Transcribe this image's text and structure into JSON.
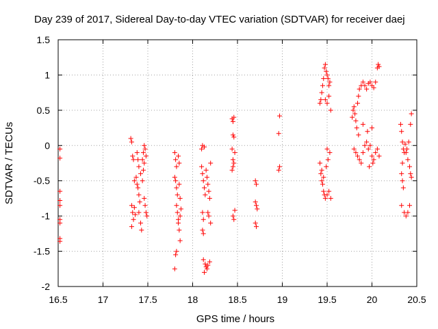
{
  "chart_data": {
    "type": "scatter",
    "title": "Day 239 of 2017, Sidereal Day-to-day VTEC variation (SDTVAR) for receiver daej",
    "xlabel": "GPS time / hours",
    "ylabel": "SDTVAR / TECUs",
    "xlim": [
      16.5,
      20.5
    ],
    "ylim": [
      -2,
      1.5
    ],
    "xticks": [
      16.5,
      17,
      17.5,
      18,
      18.5,
      19,
      19.5,
      20,
      20.5
    ],
    "xtick_labels": [
      "16.5",
      "17",
      "17.5",
      "18",
      "18.5",
      "19",
      "19.5",
      "20",
      "20.5"
    ],
    "yticks": [
      -2,
      -1.5,
      -1,
      -0.5,
      0,
      0.5,
      1,
      1.5
    ],
    "ytick_labels": [
      "-2",
      "-1.5",
      "-1",
      "-0.5",
      "0",
      "0.5",
      "1",
      "1.5"
    ],
    "grid": true,
    "marker": "+",
    "marker_color": "#ff0000",
    "series": [
      {
        "name": "SDTVAR",
        "points": [
          [
            16.52,
            -0.05
          ],
          [
            16.52,
            -0.18
          ],
          [
            16.52,
            -0.65
          ],
          [
            16.52,
            -0.78
          ],
          [
            16.52,
            -0.85
          ],
          [
            16.52,
            -1.05
          ],
          [
            16.52,
            -1.1
          ],
          [
            16.52,
            -1.32
          ],
          [
            16.52,
            -1.36
          ],
          [
            17.31,
            0.1
          ],
          [
            17.32,
            0.05
          ],
          [
            17.33,
            -0.15
          ],
          [
            17.34,
            -0.2
          ],
          [
            17.32,
            -0.85
          ],
          [
            17.33,
            -0.95
          ],
          [
            17.34,
            -1.05
          ],
          [
            17.32,
            -1.15
          ],
          [
            17.35,
            -0.5
          ],
          [
            17.37,
            -0.45
          ],
          [
            17.38,
            -0.55
          ],
          [
            17.39,
            -0.6
          ],
          [
            17.4,
            -0.7
          ],
          [
            17.41,
            -0.8
          ],
          [
            17.4,
            -0.95
          ],
          [
            17.42,
            -1.1
          ],
          [
            17.43,
            -1.2
          ],
          [
            17.38,
            -0.1
          ],
          [
            17.39,
            -0.2
          ],
          [
            17.4,
            -0.3
          ],
          [
            17.42,
            -0.4
          ],
          [
            17.44,
            -0.5
          ],
          [
            17.45,
            -0.35
          ],
          [
            17.44,
            -0.2
          ],
          [
            17.45,
            -0.1
          ],
          [
            17.46,
            0.0
          ],
          [
            17.47,
            -0.05
          ],
          [
            17.46,
            -0.75
          ],
          [
            17.47,
            -0.85
          ],
          [
            17.48,
            -0.95
          ],
          [
            17.49,
            -1.0
          ],
          [
            17.46,
            -0.25
          ],
          [
            17.48,
            -0.15
          ],
          [
            17.35,
            -0.88
          ],
          [
            17.36,
            -0.98
          ],
          [
            17.8,
            -0.1
          ],
          [
            17.81,
            -0.2
          ],
          [
            17.82,
            -0.3
          ],
          [
            17.8,
            -0.45
          ],
          [
            17.81,
            -0.5
          ],
          [
            17.82,
            -0.6
          ],
          [
            17.83,
            -0.7
          ],
          [
            17.82,
            -0.85
          ],
          [
            17.83,
            -0.95
          ],
          [
            17.84,
            -1.1
          ],
          [
            17.85,
            -1.2
          ],
          [
            17.86,
            -1.35
          ],
          [
            17.81,
            -1.55
          ],
          [
            17.8,
            -1.75
          ],
          [
            17.82,
            -1.5
          ],
          [
            17.84,
            -0.15
          ],
          [
            17.85,
            -0.25
          ],
          [
            17.85,
            -0.55
          ],
          [
            17.86,
            -0.75
          ],
          [
            17.87,
            -0.9
          ],
          [
            17.84,
            -1.05
          ],
          [
            17.86,
            -1.0
          ],
          [
            18.1,
            -0.05
          ],
          [
            18.1,
            -0.3
          ],
          [
            18.11,
            -0.4
          ],
          [
            18.12,
            -0.5
          ],
          [
            18.11,
            -0.95
          ],
          [
            18.12,
            -1.05
          ],
          [
            18.11,
            -1.2
          ],
          [
            18.12,
            -1.25
          ],
          [
            18.13,
            -0.6
          ],
          [
            18.14,
            -0.7
          ],
          [
            18.15,
            -0.35
          ],
          [
            18.16,
            -0.45
          ],
          [
            18.17,
            -0.55
          ],
          [
            18.18,
            -0.65
          ],
          [
            18.19,
            -0.75
          ],
          [
            18.2,
            -0.25
          ],
          [
            18.12,
            -1.62
          ],
          [
            18.14,
            -1.68
          ],
          [
            18.15,
            -1.72
          ],
          [
            18.17,
            -1.7
          ],
          [
            18.19,
            -1.65
          ],
          [
            18.13,
            -1.8
          ],
          [
            18.16,
            -1.75
          ],
          [
            18.18,
            -1.0
          ],
          [
            18.2,
            -1.1
          ],
          [
            18.17,
            -0.95
          ],
          [
            18.11,
            0.0
          ],
          [
            18.13,
            -0.02
          ],
          [
            18.44,
            0.38
          ],
          [
            18.45,
            0.34
          ],
          [
            18.46,
            0.4
          ],
          [
            18.45,
            0.15
          ],
          [
            18.46,
            0.12
          ],
          [
            18.44,
            -0.05
          ],
          [
            18.45,
            -0.2
          ],
          [
            18.46,
            -0.25
          ],
          [
            18.45,
            -0.3
          ],
          [
            18.44,
            -0.35
          ],
          [
            18.47,
            -0.1
          ],
          [
            18.45,
            -1.0
          ],
          [
            18.46,
            -1.05
          ],
          [
            18.47,
            -0.92
          ],
          [
            18.7,
            -0.5
          ],
          [
            18.71,
            -0.55
          ],
          [
            18.7,
            -0.8
          ],
          [
            18.71,
            -0.85
          ],
          [
            18.72,
            -0.9
          ],
          [
            18.7,
            -1.1
          ],
          [
            18.71,
            -1.15
          ],
          [
            18.97,
            0.42
          ],
          [
            18.96,
            0.17
          ],
          [
            18.97,
            -0.3
          ],
          [
            18.96,
            -0.35
          ],
          [
            19.42,
            0.6
          ],
          [
            19.43,
            0.65
          ],
          [
            19.44,
            0.75
          ],
          [
            19.45,
            0.85
          ],
          [
            19.46,
            0.95
          ],
          [
            19.47,
            1.1
          ],
          [
            19.48,
            1.15
          ],
          [
            19.49,
            1.05
          ],
          [
            19.5,
            1.0
          ],
          [
            19.51,
            0.95
          ],
          [
            19.52,
            0.85
          ],
          [
            19.53,
            0.9
          ],
          [
            19.48,
            0.65
          ],
          [
            19.5,
            0.6
          ],
          [
            19.52,
            0.7
          ],
          [
            19.54,
            0.5
          ],
          [
            19.42,
            -0.25
          ],
          [
            19.43,
            -0.4
          ],
          [
            19.44,
            -0.5
          ],
          [
            19.45,
            -0.55
          ],
          [
            19.46,
            -0.65
          ],
          [
            19.47,
            -0.7
          ],
          [
            19.48,
            -0.75
          ],
          [
            19.5,
            -0.7
          ],
          [
            19.52,
            -0.65
          ],
          [
            19.54,
            -0.75
          ],
          [
            19.49,
            -0.3
          ],
          [
            19.51,
            -0.2
          ],
          [
            19.53,
            -0.1
          ],
          [
            19.5,
            -0.05
          ],
          [
            19.44,
            -0.35
          ],
          [
            19.46,
            -0.45
          ],
          [
            19.78,
            0.4
          ],
          [
            19.79,
            0.5
          ],
          [
            19.8,
            0.55
          ],
          [
            19.81,
            0.45
          ],
          [
            19.82,
            0.35
          ],
          [
            19.83,
            0.25
          ],
          [
            19.84,
            0.6
          ],
          [
            19.85,
            0.7
          ],
          [
            19.86,
            0.8
          ],
          [
            19.88,
            0.85
          ],
          [
            19.9,
            0.9
          ],
          [
            19.92,
            0.85
          ],
          [
            19.94,
            0.8
          ],
          [
            19.96,
            0.88
          ],
          [
            19.98,
            0.9
          ],
          [
            20.0,
            0.85
          ],
          [
            20.02,
            0.82
          ],
          [
            20.04,
            0.9
          ],
          [
            20.06,
            1.1
          ],
          [
            20.07,
            1.15
          ],
          [
            20.08,
            1.12
          ],
          [
            19.8,
            -0.05
          ],
          [
            19.82,
            -0.1
          ],
          [
            19.84,
            -0.15
          ],
          [
            19.86,
            -0.2
          ],
          [
            19.88,
            -0.25
          ],
          [
            19.9,
            -0.1
          ],
          [
            19.92,
            0.0
          ],
          [
            19.94,
            0.05
          ],
          [
            19.96,
            -0.05
          ],
          [
            19.98,
            0.0
          ],
          [
            20.0,
            -0.15
          ],
          [
            20.02,
            -0.2
          ],
          [
            20.04,
            -0.1
          ],
          [
            20.06,
            -0.05
          ],
          [
            20.08,
            -0.15
          ],
          [
            19.85,
            0.15
          ],
          [
            19.9,
            0.3
          ],
          [
            19.95,
            0.2
          ],
          [
            20.0,
            0.25
          ],
          [
            19.97,
            -0.3
          ],
          [
            20.01,
            -0.25
          ],
          [
            20.32,
            0.3
          ],
          [
            20.33,
            0.2
          ],
          [
            20.34,
            0.05
          ],
          [
            20.35,
            -0.05
          ],
          [
            20.36,
            -0.1
          ],
          [
            20.34,
            -0.25
          ],
          [
            20.33,
            -0.4
          ],
          [
            20.34,
            -0.5
          ],
          [
            20.35,
            -0.6
          ],
          [
            20.33,
            -0.85
          ],
          [
            20.36,
            -0.95
          ],
          [
            20.38,
            -1.0
          ],
          [
            20.4,
            -0.95
          ],
          [
            20.42,
            -0.85
          ],
          [
            20.38,
            -0.1
          ],
          [
            20.4,
            -0.2
          ],
          [
            20.42,
            -0.3
          ],
          [
            20.44,
            -0.45
          ],
          [
            20.43,
            0.3
          ],
          [
            20.44,
            0.45
          ],
          [
            20.41,
            0.05
          ],
          [
            20.39,
            -0.05
          ],
          [
            20.37,
            0.02
          ],
          [
            20.43,
            -0.4
          ]
        ]
      }
    ]
  }
}
